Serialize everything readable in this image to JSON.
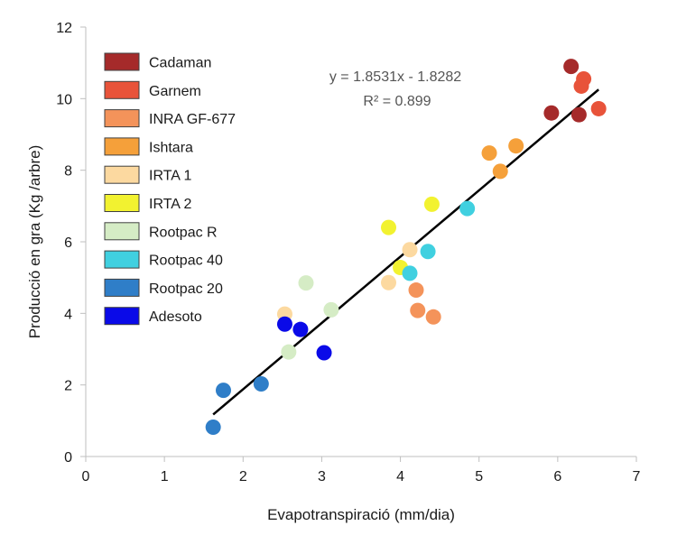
{
  "chart_data": {
    "type": "scatter",
    "xlabel": "Evapotranspiració (mm/dia)",
    "ylabel": "Producció en gra (Kg /arbre)",
    "xlim": [
      0,
      7
    ],
    "ylim": [
      0,
      12
    ],
    "x_ticks": [
      "0",
      "1",
      "2",
      "3",
      "4",
      "5",
      "6",
      "7"
    ],
    "y_ticks": [
      "0",
      "2",
      "4",
      "6",
      "8",
      "10",
      "12"
    ],
    "grid": false,
    "legend_position": "top-left",
    "series": [
      {
        "name": "Cadaman",
        "color": "#a52a2a",
        "points": [
          [
            6.17,
            10.9
          ],
          [
            5.92,
            9.6
          ],
          [
            6.27,
            9.55
          ]
        ]
      },
      {
        "name": "Garnem",
        "color": "#e8533a",
        "points": [
          [
            6.33,
            10.55
          ],
          [
            6.3,
            10.35
          ],
          [
            6.52,
            9.72
          ]
        ]
      },
      {
        "name": "INRA GF-677",
        "color": "#f4935a",
        "points": [
          [
            4.2,
            4.65
          ],
          [
            4.22,
            4.08
          ],
          [
            4.42,
            3.9
          ]
        ]
      },
      {
        "name": "Ishtara",
        "color": "#f5a03a",
        "points": [
          [
            5.13,
            8.48
          ],
          [
            5.27,
            7.97
          ],
          [
            5.47,
            8.68
          ]
        ]
      },
      {
        "name": "IRTA 1",
        "color": "#fcd9a0",
        "points": [
          [
            2.53,
            3.98
          ],
          [
            3.85,
            4.86
          ],
          [
            4.12,
            5.78
          ]
        ]
      },
      {
        "name": "IRTA 2",
        "color": "#f2f230",
        "points": [
          [
            3.85,
            6.4
          ],
          [
            4.0,
            5.28
          ],
          [
            4.4,
            7.05
          ]
        ]
      },
      {
        "name": "Rootpac R",
        "color": "#d5ecc5",
        "points": [
          [
            2.58,
            2.92
          ],
          [
            2.8,
            4.85
          ],
          [
            3.12,
            4.1
          ]
        ]
      },
      {
        "name": "Rootpac 40",
        "color": "#40d0e0",
        "points": [
          [
            4.12,
            5.12
          ],
          [
            4.35,
            5.73
          ],
          [
            4.85,
            6.93
          ]
        ]
      },
      {
        "name": "Rootpac 20",
        "color": "#2f7ec8",
        "points": [
          [
            1.62,
            0.82
          ],
          [
            1.75,
            1.85
          ],
          [
            2.23,
            2.03
          ]
        ]
      },
      {
        "name": "Adesoto",
        "color": "#0a0ae8",
        "points": [
          [
            2.53,
            3.7
          ],
          [
            2.73,
            3.55
          ],
          [
            3.03,
            2.9
          ]
        ]
      }
    ],
    "trendline": {
      "equation": "y = 1.8531x - 1.8282",
      "r_squared": "R² = 0.899",
      "slope": 1.8531,
      "intercept": -1.8282,
      "x_range": [
        1.62,
        6.52
      ]
    }
  }
}
